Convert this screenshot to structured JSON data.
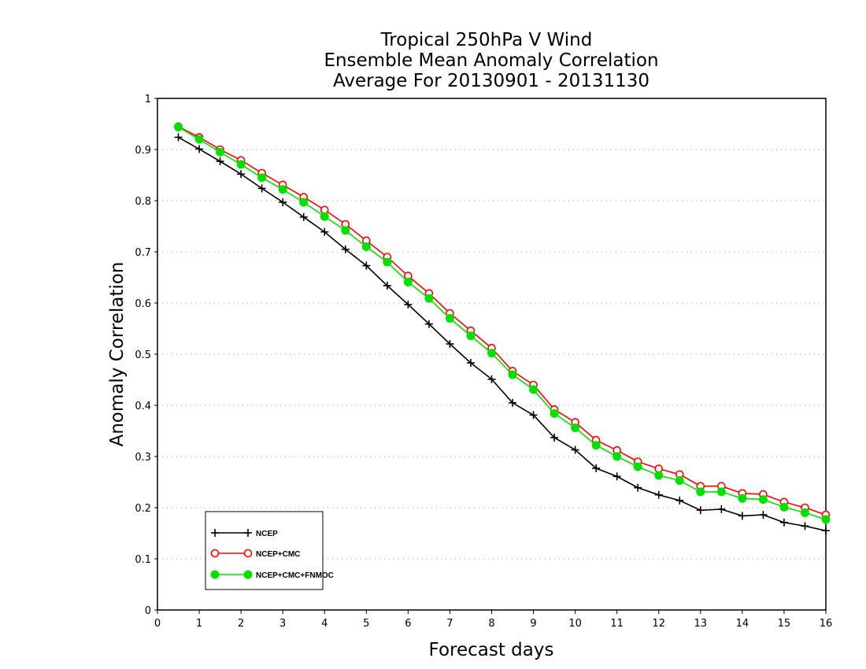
{
  "chart_data": {
    "type": "line",
    "title_lines": [
      "Tropical 250hPa V Wind",
      "Ensemble Mean Anomaly Correlation",
      "Average For 20130901 - 20131130"
    ],
    "xlabel": "Forecast days",
    "ylabel": "Anomaly Correlation",
    "xlim": [
      0,
      16
    ],
    "ylim": [
      0,
      1
    ],
    "x_ticks": [
      "0",
      "1",
      "2",
      "3",
      "4",
      "5",
      "6",
      "7",
      "8",
      "9",
      "10",
      "11",
      "12",
      "13",
      "14",
      "15",
      "16"
    ],
    "y_ticks": [
      "0",
      "0.1",
      "0.2",
      "0.3",
      "0.4",
      "0.5",
      "0.6",
      "0.7",
      "0.8",
      "0.9",
      "1"
    ],
    "grid": "horizontal dotted",
    "legend_position": "bottom-left",
    "x": [
      0.5,
      1,
      1.5,
      2,
      2.5,
      3,
      3.5,
      4,
      4.5,
      5,
      5.5,
      6,
      6.5,
      7,
      7.5,
      8,
      8.5,
      9,
      9.5,
      10,
      10.5,
      11,
      11.5,
      12,
      12.5,
      13,
      13.5,
      14,
      14.5,
      15,
      15.5,
      16
    ],
    "series": [
      {
        "name": "NCEP",
        "color": "#000000",
        "marker": "plus",
        "values": [
          0.924,
          0.901,
          0.877,
          0.852,
          0.824,
          0.797,
          0.768,
          0.739,
          0.705,
          0.673,
          0.634,
          0.597,
          0.559,
          0.52,
          0.483,
          0.451,
          0.405,
          0.381,
          0.337,
          0.313,
          0.277,
          0.261,
          0.239,
          0.225,
          0.214,
          0.195,
          0.197,
          0.184,
          0.186,
          0.171,
          0.164,
          0.155
        ]
      },
      {
        "name": "NCEP+CMC",
        "color": "#ff0000",
        "marker": "open-circle",
        "values": [
          0.945,
          0.924,
          0.9,
          0.879,
          0.854,
          0.831,
          0.807,
          0.782,
          0.754,
          0.722,
          0.69,
          0.653,
          0.619,
          0.58,
          0.546,
          0.512,
          0.467,
          0.44,
          0.392,
          0.367,
          0.332,
          0.312,
          0.29,
          0.276,
          0.265,
          0.242,
          0.242,
          0.228,
          0.226,
          0.211,
          0.2,
          0.186
        ]
      },
      {
        "name": "NCEP+CMC+FNMOC",
        "color": "#00e000",
        "marker": "filled-circle",
        "values": [
          0.944,
          0.92,
          0.895,
          0.871,
          0.845,
          0.822,
          0.797,
          0.769,
          0.742,
          0.71,
          0.68,
          0.641,
          0.609,
          0.57,
          0.536,
          0.502,
          0.46,
          0.431,
          0.384,
          0.356,
          0.322,
          0.3,
          0.28,
          0.263,
          0.253,
          0.231,
          0.231,
          0.218,
          0.216,
          0.201,
          0.19,
          0.177
        ]
      }
    ]
  }
}
